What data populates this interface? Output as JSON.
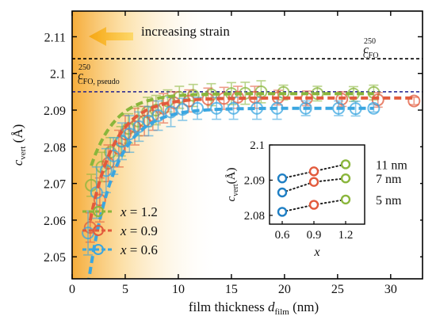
{
  "chart_data": [
    {
      "type": "scatter",
      "xlabel_prefix": "film thickness ",
      "xlabel_var": "d",
      "xlabel_sub": "film",
      "xlabel_suffix": " (nm)",
      "ylabel_var": "c",
      "ylabel_sub": "vert",
      "ylabel_suffix": " (Å)",
      "xlim": [
        0,
        33
      ],
      "ylim": [
        2.044,
        2.117
      ],
      "xticks": [
        0,
        5,
        10,
        15,
        20,
        25,
        30
      ],
      "yticks": [
        2.05,
        2.06,
        2.07,
        2.08,
        2.09,
        2.1,
        2.11
      ],
      "ytick_labels": [
        "2.05",
        "2.06",
        "2.07",
        "2.08",
        "2.09",
        "2.1",
        "2.11"
      ],
      "annotation_strain": "increasing strain",
      "ref_lines": [
        {
          "y": 2.104,
          "label_main": "c",
          "label_sup": "250",
          "label_sub": "CFO",
          "color": "#000000"
        },
        {
          "y": 2.095,
          "label_main": "c",
          "label_sup": "250",
          "label_sub": "CFO, pseudo",
          "color": "#1f1f8f"
        }
      ],
      "legend": {
        "var": "x",
        "entries": [
          "= 1.2",
          "= 0.9",
          "= 0.6"
        ],
        "placement": "lower-left"
      },
      "series": [
        {
          "name": "x = 1.2",
          "color": "#8ab63c",
          "x": [
            1.8,
            2.8,
            3.6,
            4.6,
            5.3,
            6.2,
            7.1,
            7.9,
            9.0,
            10.1,
            11.4,
            13.1,
            15.0,
            16.3,
            17.8,
            19.9,
            23.1,
            26.5,
            28.4
          ],
          "y": [
            2.0695,
            2.0745,
            2.0785,
            2.0815,
            2.085,
            2.087,
            2.0895,
            2.09,
            2.0925,
            2.0935,
            2.094,
            2.0942,
            2.0945,
            2.0946,
            2.095,
            2.0948,
            2.0945,
            2.0944,
            2.0948
          ],
          "err": [
            0.003,
            0.004,
            0.004,
            0.004,
            0.004,
            0.004,
            0.004,
            0.004,
            0.003,
            0.003,
            0.003,
            0.003,
            0.003,
            0.003,
            0.003,
            0.002,
            0.002,
            0.002,
            0.002
          ],
          "fit": {
            "a": 2.0945,
            "b": 0.043,
            "t": 2.3
          }
        },
        {
          "name": "x = 0.9",
          "color": "#e25a3c",
          "x": [
            1.7,
            2.6,
            3.4,
            4.4,
            5.0,
            5.9,
            6.8,
            7.6,
            8.6,
            9.6,
            11.0,
            12.8,
            14.3,
            15.6,
            17.2,
            19.4,
            22.1,
            25.4,
            28.8,
            32.2
          ],
          "y": [
            2.058,
            2.0655,
            2.0755,
            2.0795,
            2.0835,
            2.0855,
            2.087,
            2.0885,
            2.0905,
            2.092,
            2.0925,
            2.093,
            2.0932,
            2.0935,
            2.0935,
            2.0934,
            2.0932,
            2.093,
            2.0928,
            2.0925
          ],
          "err": [
            0.004,
            0.006,
            0.005,
            0.005,
            0.005,
            0.005,
            0.004,
            0.004,
            0.004,
            0.003,
            0.003,
            0.003,
            0.003,
            0.003,
            0.003,
            0.002,
            0.002,
            0.002,
            0.002,
            0.001
          ],
          "fit": {
            "a": 2.0933,
            "b": 0.07,
            "t": 2.3
          }
        },
        {
          "name": "x = 0.6",
          "color": "#3aa6e0",
          "x": [
            1.5,
            2.3,
            3.2,
            3.9,
            4.7,
            5.4,
            6.3,
            7.2,
            8.1,
            9.3,
            10.4,
            11.8,
            13.6,
            15.2,
            17.4,
            19.3,
            22.0,
            25.1,
            26.7,
            28.4
          ],
          "y": [
            2.0565,
            2.0675,
            2.0735,
            2.0775,
            2.0815,
            2.0835,
            2.0855,
            2.087,
            2.0885,
            2.0895,
            2.0902,
            2.0905,
            2.0905,
            2.0905,
            2.0905,
            2.0905,
            2.0905,
            2.0905,
            2.0904,
            2.0905
          ],
          "err": [
            0.006,
            0.007,
            0.006,
            0.005,
            0.005,
            0.005,
            0.004,
            0.004,
            0.004,
            0.004,
            0.003,
            0.003,
            0.003,
            0.003,
            0.003,
            0.003,
            0.002,
            0.002,
            0.002,
            0.001
          ],
          "fit": {
            "a": 2.0905,
            "b": 0.09,
            "t": 2.4
          }
        }
      ]
    },
    {
      "type": "scatter",
      "inset": true,
      "xlabel": "x",
      "ylabel_var": "c",
      "ylabel_sub": "vert",
      "ylabel_suffix": "(Å)",
      "xlim": [
        0.48,
        1.38
      ],
      "ylim": [
        2.0775,
        2.1
      ],
      "xticks": [
        0.6,
        0.9,
        1.2
      ],
      "xtick_labels": [
        "0.6",
        "0.9",
        "1.2"
      ],
      "yticks": [
        2.08,
        2.09,
        2.1
      ],
      "ytick_labels": [
        "2.08",
        "2.09",
        "2.1"
      ],
      "point_colors": [
        "#1f7fc4",
        "#e25a3c",
        "#8ab63c"
      ],
      "series": [
        {
          "name": "11 nm",
          "x": [
            0.6,
            0.9,
            1.2
          ],
          "y": [
            2.0905,
            2.0925,
            2.0945
          ]
        },
        {
          "name": "7 nm",
          "x": [
            0.6,
            0.9,
            1.2
          ],
          "y": [
            2.0865,
            2.0895,
            2.0905
          ]
        },
        {
          "name": "5 nm",
          "x": [
            0.6,
            0.9,
            1.2
          ],
          "y": [
            2.081,
            2.083,
            2.0845
          ]
        }
      ]
    }
  ]
}
